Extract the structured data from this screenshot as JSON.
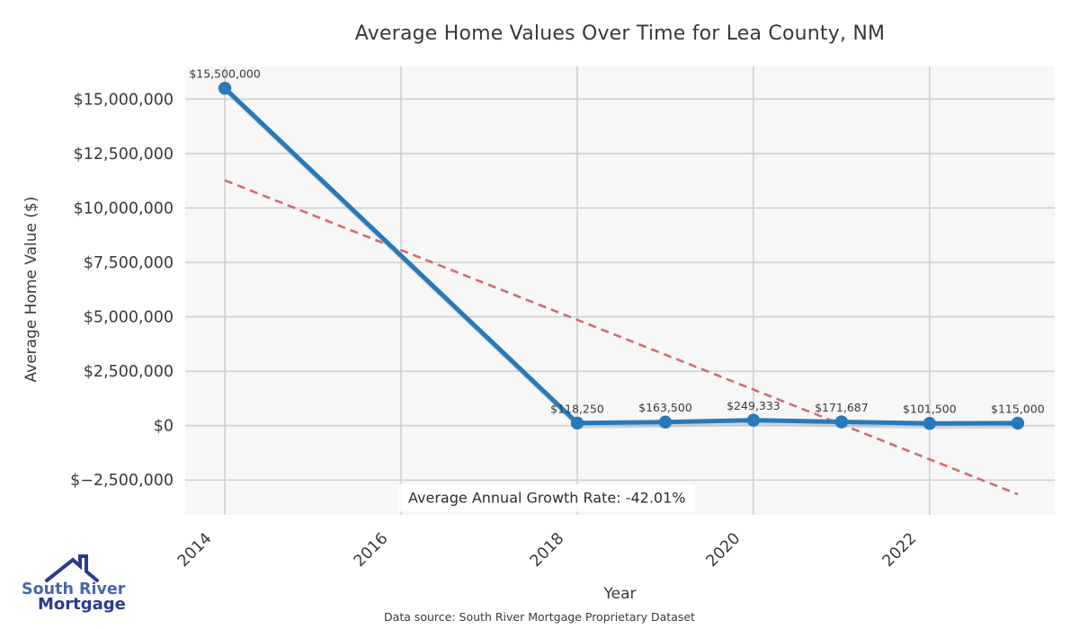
{
  "chart_data": {
    "type": "line",
    "title": "Average Home Values Over Time for Lea County, NM",
    "xlabel": "Year",
    "ylabel": "Average Home Value ($)",
    "x": [
      2014,
      2018,
      2019,
      2020,
      2021,
      2022,
      2023
    ],
    "series": [
      {
        "name": "Average Home Value",
        "values": [
          15500000,
          118250,
          163500,
          249333,
          171687,
          101500,
          115000
        ],
        "point_labels": [
          "$15,500,000",
          "$118,250",
          "$163,500",
          "$249,333",
          "$171,687",
          "$101,500",
          "$115,000"
        ]
      }
    ],
    "trendline": {
      "name": "linear-trend",
      "x": [
        2014,
        2023
      ],
      "values": [
        11270000,
        -3150000
      ],
      "style": "dashed"
    },
    "annotation": {
      "text": "Average Annual Growth Rate: -42.01%",
      "x": 2016.0,
      "value": -3320000
    },
    "x_ticks": [
      {
        "v": 2014,
        "label": "2014"
      },
      {
        "v": 2016,
        "label": "2016"
      },
      {
        "v": 2018,
        "label": "2018"
      },
      {
        "v": 2020,
        "label": "2020"
      },
      {
        "v": 2022,
        "label": "2022"
      }
    ],
    "y_ticks": [
      {
        "v": 15000000,
        "label": "$15,000,000"
      },
      {
        "v": 12500000,
        "label": "$12,500,000"
      },
      {
        "v": 10000000,
        "label": "$10,000,000"
      },
      {
        "v": 7500000,
        "label": "$7,500,000"
      },
      {
        "v": 5000000,
        "label": "$5,000,000"
      },
      {
        "v": 2500000,
        "label": "$2,500,000"
      },
      {
        "v": 0,
        "label": "$0"
      },
      {
        "v": -2500000,
        "label": "$−2,500,000"
      }
    ],
    "xlim": [
      2013.55,
      2023.42
    ],
    "ylim": [
      -4100000,
      16500000
    ],
    "grid": true,
    "legend_position": "none",
    "colors": {
      "line": "#2879b9",
      "marker": "#2879b9",
      "trend": "#d06d70",
      "grid": "#cfcfcf",
      "plot_bg": "#f7f7f7",
      "tick_text": "#3a3a3a",
      "label_text": "#3a3a3a"
    }
  },
  "footer": {
    "text": "Data source: South River Mortgage Proprietary Dataset"
  },
  "logo": {
    "line1": "South River",
    "line2": "Mortgage",
    "text_color_1": "#4767b0",
    "text_color_2": "#2c3a8e",
    "roof_color": "#2c3a8e"
  }
}
